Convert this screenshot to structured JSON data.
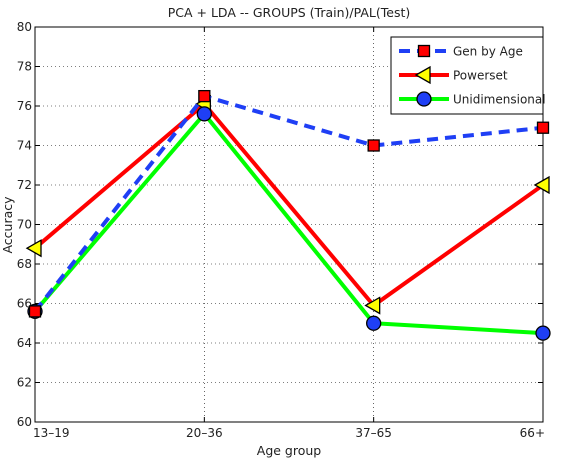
{
  "chart_data": {
    "type": "line",
    "title": "PCA + LDA -- GROUPS (Train)/PAL(Test)",
    "xlabel": "Age group",
    "ylabel": "Accuracy",
    "categories": [
      "13–19",
      "20–36",
      "37–65",
      "66+"
    ],
    "ylim": [
      60,
      80
    ],
    "yticks": [
      60,
      62,
      64,
      66,
      68,
      70,
      72,
      74,
      76,
      78,
      80
    ],
    "grid": true,
    "legend_position": "top-right",
    "series": [
      {
        "name": "Gen by Age",
        "color": "#1f3ff5",
        "line_style": "dashed",
        "marker": "square",
        "marker_color": "#ff0000",
        "values": [
          65.6,
          76.5,
          74.0,
          74.9
        ]
      },
      {
        "name": "Powerset",
        "color": "#ff0000",
        "line_style": "solid",
        "marker": "triangle-left",
        "marker_color": "#ffff00",
        "values": [
          68.8,
          76.1,
          65.9,
          72.0
        ]
      },
      {
        "name": "Unidimensional",
        "color": "#00ff00",
        "line_style": "solid",
        "marker": "circle",
        "marker_color": "#1f3ff5",
        "values": [
          65.6,
          75.6,
          65.0,
          64.5
        ]
      }
    ]
  }
}
